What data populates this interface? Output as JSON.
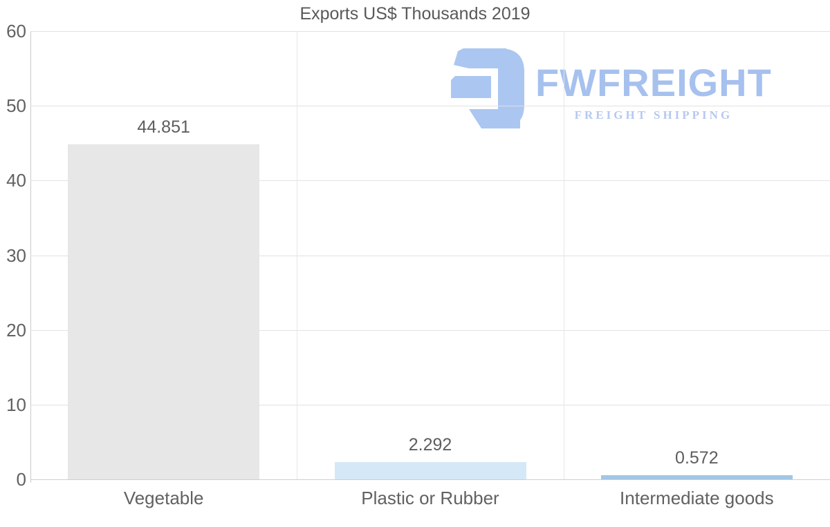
{
  "chart_data": {
    "type": "bar",
    "title": "Exports US$ Thousands 2019",
    "categories": [
      "Vegetable",
      "Plastic or Rubber",
      "Intermediate goods"
    ],
    "values": [
      44.851,
      2.292,
      0.572
    ],
    "value_labels": [
      "44.851",
      "2.292",
      "0.572"
    ],
    "bar_colors": [
      "#e7e7e7",
      "#d5e8f8",
      "#a3c6e4"
    ],
    "xlabel": "",
    "ylabel": "",
    "ylim": [
      0,
      60
    ],
    "yticks": [
      60,
      50,
      40,
      30,
      20,
      10,
      0
    ],
    "grid": true,
    "legend": "none"
  },
  "watermark": {
    "name": "FWFREIGHT",
    "subtitle": "FREIGHT SHIPPING",
    "logo_color": "#abc6f1",
    "name_color": "#a6c1ee",
    "subtitle_color": "#b6c9ef"
  },
  "style": {
    "gridline_color": "#e2e2e2",
    "axis_color": "#c9c9c9",
    "baseline_color": "#cfcfcf",
    "text_color": "#616161",
    "title_color": "#595959"
  }
}
